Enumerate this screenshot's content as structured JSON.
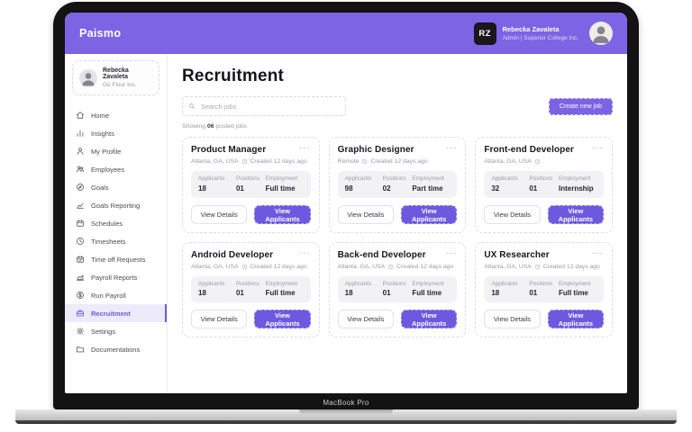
{
  "device": {
    "label": "MacBook Pro"
  },
  "topbar": {
    "brand": "Paismo",
    "user": {
      "initials": "RZ",
      "name": "Rebecka Zavaleta",
      "role": "Admin | Superior College Inc."
    }
  },
  "sidebar": {
    "profile": {
      "name": "Rebecka Zavaleta",
      "company": "Go Flour Inc."
    },
    "items": [
      {
        "label": "Home",
        "icon": "home-icon",
        "active": false
      },
      {
        "label": "Insights",
        "icon": "insights-icon",
        "active": false
      },
      {
        "label": "My Profile",
        "icon": "profile-icon",
        "active": false
      },
      {
        "label": "Employees",
        "icon": "employees-icon",
        "active": false
      },
      {
        "label": "Goals",
        "icon": "goals-icon",
        "active": false
      },
      {
        "label": "Goals Reporting",
        "icon": "goals-reporting-icon",
        "active": false
      },
      {
        "label": "Schedules",
        "icon": "schedules-icon",
        "active": false
      },
      {
        "label": "Timesheets",
        "icon": "timesheets-icon",
        "active": false
      },
      {
        "label": "Time off Requests",
        "icon": "time-off-icon",
        "active": false
      },
      {
        "label": "Payroll Reports",
        "icon": "payroll-reports-icon",
        "active": false
      },
      {
        "label": "Run Payroll",
        "icon": "run-payroll-icon",
        "active": false
      },
      {
        "label": "Recruitment",
        "icon": "recruitment-icon",
        "active": true
      },
      {
        "label": "Settings",
        "icon": "settings-icon",
        "active": false
      },
      {
        "label": "Documentations",
        "icon": "documentations-icon",
        "active": false
      }
    ]
  },
  "main": {
    "title": "Recruitment",
    "search_placeholder": "Search jobs",
    "create_button": "Create new job",
    "showing_prefix": "Showing",
    "showing_count": "06",
    "showing_suffix": "posted jobs",
    "stats_labels": {
      "applicants": "Applicants",
      "positions": "Positions",
      "employment": "Employment"
    },
    "view_details": "View Details",
    "view_applicants": "View Applicants",
    "cards": [
      {
        "title": "Product Manager",
        "location": "Atlanta, GA, USA",
        "created": "Created 12 days ago",
        "applicants": "18",
        "positions": "01",
        "employment": "Full time"
      },
      {
        "title": "Graphic Designer",
        "location": "Remote",
        "created": "Created 12 days ago",
        "applicants": "98",
        "positions": "02",
        "employment": "Part time"
      },
      {
        "title": "Front-end Developer",
        "location": "Atlanta, GA, USA",
        "created": "",
        "applicants": "32",
        "positions": "01",
        "employment": "Internship"
      },
      {
        "title": "Android Developer",
        "location": "Atlanta, GA, USA",
        "created": "Created 12 days ago",
        "applicants": "18",
        "positions": "01",
        "employment": "Full time"
      },
      {
        "title": "Back-end Developer",
        "location": "Atlanta, GA, USA",
        "created": "Created 12 days ago",
        "applicants": "18",
        "positions": "01",
        "employment": "Full time"
      },
      {
        "title": "UX Researcher",
        "location": "Atlanta, GA, USA",
        "created": "Created 12 days ago",
        "applicants": "18",
        "positions": "01",
        "employment": "Full time"
      }
    ]
  },
  "colors": {
    "accent": "#7C64E4",
    "button_purple": "#6D59E0",
    "active_item_bg": "#EDEAFB"
  }
}
